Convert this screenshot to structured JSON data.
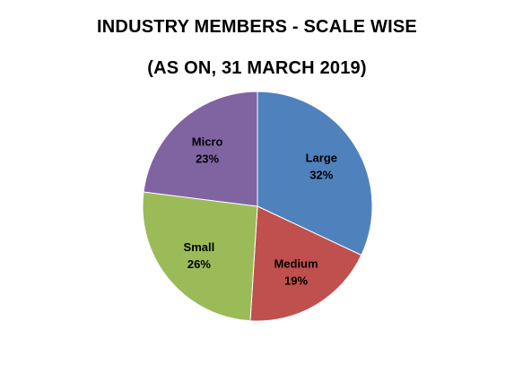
{
  "chart_data": {
    "type": "pie",
    "title": "INDUSTRY MEMBERS - SCALE WISE",
    "subtitle": "(AS ON, 31 MARCH 2019)",
    "categories": [
      "Large",
      "Medium",
      "Small",
      "Micro"
    ],
    "values": [
      32,
      19,
      26,
      23
    ],
    "value_labels": [
      "32%",
      "19%",
      "26%",
      "23%"
    ],
    "unit": "%",
    "colors": [
      "#4F81BD",
      "#C0504D",
      "#9BBB59",
      "#8064A2"
    ],
    "start": "12 o'clock, clockwise",
    "legend": "none"
  }
}
